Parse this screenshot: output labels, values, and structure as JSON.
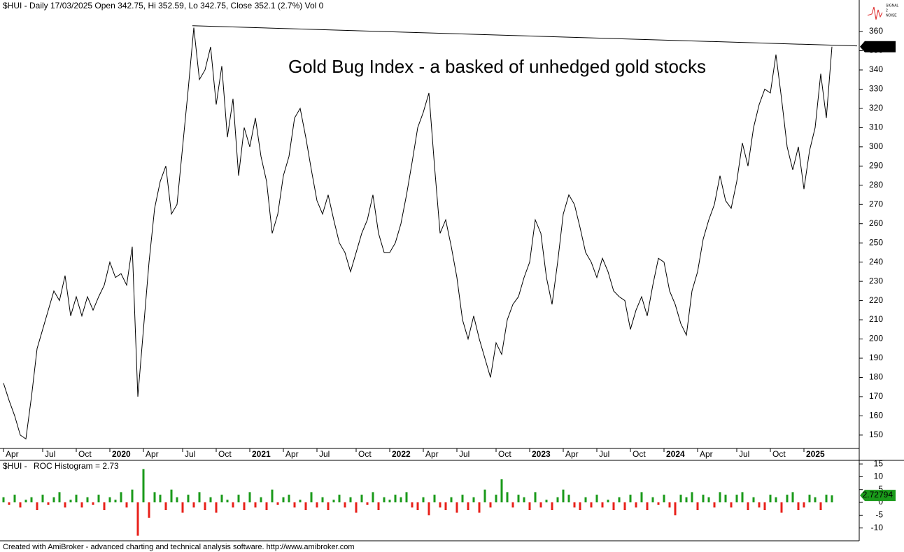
{
  "chart_data": [
    {
      "type": "line",
      "title": "$HUI - Daily 17/03/2025 Open 342.75, Hi 352.59, Lo 342.75, Close 352.1 (2.7%) Vol 0",
      "annotation": "Gold Bug Index - a basked of unhedged gold stocks",
      "annotation_color": "#ffa500",
      "color": "#000000",
      "categories": [
        "Apr",
        null,
        null,
        null,
        null,
        null,
        null,
        "Jul",
        null,
        null,
        null,
        null,
        null,
        "Oct",
        null,
        null,
        null,
        null,
        null,
        "2020",
        null,
        null,
        null,
        null,
        null,
        "Apr",
        null,
        null,
        null,
        null,
        null,
        null,
        "Jul",
        null,
        null,
        null,
        null,
        null,
        "Oct",
        null,
        null,
        null,
        null,
        null,
        "2021",
        null,
        null,
        null,
        null,
        null,
        "Apr",
        null,
        null,
        null,
        null,
        null,
        "Jul",
        null,
        null,
        null,
        null,
        null,
        null,
        "Oct",
        null,
        null,
        null,
        null,
        null,
        "2022",
        null,
        null,
        null,
        null,
        null,
        "Apr",
        null,
        null,
        null,
        null,
        null,
        "Jul",
        null,
        null,
        null,
        null,
        null,
        null,
        "Oct",
        null,
        null,
        null,
        null,
        null,
        "2023",
        null,
        null,
        null,
        null,
        null,
        "Apr",
        null,
        null,
        null,
        null,
        null,
        "Jul",
        null,
        null,
        null,
        null,
        null,
        "Oct",
        null,
        null,
        null,
        null,
        null,
        "2024",
        null,
        null,
        null,
        null,
        null,
        "Apr",
        null,
        null,
        null,
        null,
        null,
        null,
        "Jul",
        null,
        null,
        null,
        null,
        null,
        "Oct",
        null,
        null,
        null,
        null,
        null,
        "2025",
        null,
        null,
        null,
        null,
        null
      ],
      "values": [
        177,
        168,
        160,
        150,
        148,
        170,
        195,
        205,
        215,
        225,
        220,
        233,
        212,
        222,
        212,
        222,
        215,
        222,
        228,
        240,
        232,
        234,
        228,
        248,
        170,
        205,
        240,
        268,
        282,
        290,
        265,
        270,
        300,
        330,
        362,
        335,
        340,
        352,
        322,
        342,
        305,
        325,
        285,
        310,
        300,
        315,
        295,
        282,
        255,
        265,
        285,
        295,
        315,
        320,
        305,
        288,
        272,
        265,
        275,
        262,
        250,
        245,
        235,
        245,
        255,
        262,
        275,
        255,
        245,
        245,
        250,
        260,
        275,
        292,
        310,
        318,
        328,
        290,
        255,
        262,
        248,
        232,
        210,
        200,
        212,
        200,
        190,
        180,
        198,
        192,
        210,
        218,
        222,
        232,
        240,
        262,
        255,
        232,
        218,
        240,
        265,
        275,
        270,
        258,
        245,
        240,
        232,
        242,
        235,
        225,
        222,
        220,
        205,
        215,
        222,
        212,
        228,
        242,
        240,
        225,
        218,
        208,
        202,
        225,
        235,
        252,
        262,
        270,
        285,
        272,
        268,
        282,
        302,
        290,
        310,
        322,
        330,
        328,
        348,
        325,
        300,
        288,
        300,
        278,
        298,
        310,
        338,
        315,
        352.1
      ],
      "trendline": [
        [
          33.75,
          363
        ],
        [
          152.5,
          352.5
        ]
      ],
      "ylim": [
        143.4,
        376.4
      ],
      "yticks": [
        150,
        160,
        170,
        180,
        190,
        200,
        210,
        220,
        230,
        240,
        250,
        260,
        270,
        280,
        290,
        300,
        310,
        320,
        330,
        340,
        350,
        360
      ],
      "grid": false
    },
    {
      "type": "bar",
      "source": "$HUI -",
      "title": "ROC Histogram = 2.73",
      "title_color": "#1a9a1a",
      "positive_color": "#1a9a1a",
      "negative_color": "#e8201a",
      "values": [
        2,
        -1,
        3,
        -2,
        1,
        2,
        -3,
        3,
        -1,
        2,
        4,
        -2,
        1,
        3,
        -2,
        2,
        -1,
        3,
        -3,
        2,
        1,
        4,
        -2,
        5,
        -13,
        13,
        -6,
        4,
        3,
        -3,
        5,
        2,
        -4,
        3,
        -2,
        4,
        -3,
        2,
        -4,
        3,
        1,
        -2,
        3,
        -3,
        4,
        -2,
        2,
        -3,
        5,
        -1,
        2,
        3,
        -2,
        1,
        -3,
        4,
        -2,
        2,
        -3,
        1,
        3,
        -2,
        2,
        -4,
        3,
        -1,
        4,
        -3,
        2,
        1,
        3,
        2,
        4,
        -2,
        -3,
        2,
        -5,
        3,
        -2,
        -3,
        2,
        -4,
        3,
        -3,
        2,
        -4,
        5,
        -2,
        3,
        9,
        4,
        -2,
        3,
        2,
        -3,
        4,
        -2,
        1,
        -3,
        2,
        5,
        3,
        -2,
        -3,
        2,
        -2,
        3,
        -2,
        1,
        -3,
        2,
        -3,
        3,
        -2,
        4,
        -3,
        2,
        -1,
        3,
        -2,
        -5,
        3,
        2,
        4,
        -3,
        3,
        2,
        -2,
        4,
        3,
        -2,
        3,
        4,
        -3,
        2,
        -2,
        -3,
        3,
        2,
        -4,
        3,
        4,
        -3,
        -2,
        3,
        2,
        -3,
        3,
        2.72794
      ],
      "ylim": [
        -15,
        16.4
      ],
      "yticks": [
        -10,
        -5,
        0,
        5,
        10,
        15
      ],
      "grid": false
    }
  ],
  "footer": "Created with AmiBroker - advanced charting and technical analysis software. http://www.amibroker.com",
  "logo": {
    "lines": [
      "SIGNAL",
      "2",
      "NOISE"
    ]
  }
}
